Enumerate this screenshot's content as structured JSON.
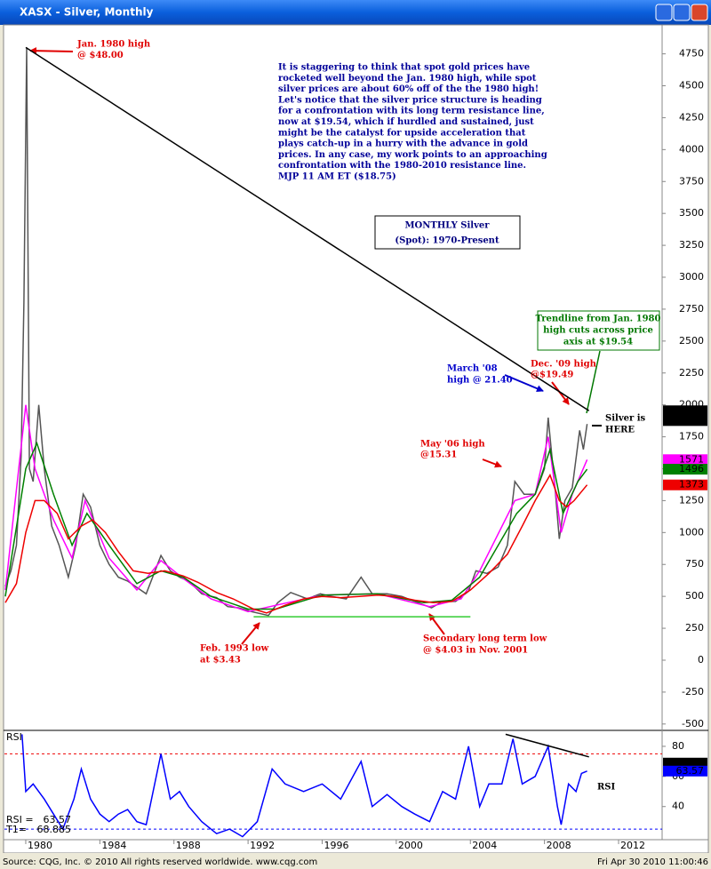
{
  "window_title": "XASX - Silver, Monthly",
  "chart_data": {
    "type": "line",
    "ylim": [
      -550,
      4970
    ],
    "yticks": [
      4750,
      4500,
      4250,
      4000,
      3750,
      3500,
      3250,
      3000,
      2750,
      2500,
      2250,
      2000,
      1750,
      1500,
      1250,
      1000,
      750,
      500,
      250,
      0,
      -250,
      -500
    ],
    "xlim": [
      1978.85,
      2014.35
    ],
    "xticks": [
      1980,
      1984,
      1988,
      1992,
      1996,
      2000,
      2004,
      2008,
      2012
    ],
    "series": [
      {
        "color": "#555555",
        "x": [
          1978.9,
          1979.2,
          1979.5,
          1979.75,
          1979.9,
          1980.05,
          1980.2,
          1980.4,
          1980.7,
          1981.0,
          1981.4,
          1981.8,
          1982.3,
          1982.7,
          1983.1,
          1983.5,
          1984.0,
          1984.5,
          1985.0,
          1985.5,
          1986.0,
          1986.5,
          1987.3,
          1987.8,
          1988.3,
          1988.8,
          1989.5,
          1990.3,
          1990.9,
          1991.5,
          1992.2,
          1993.1,
          1993.6,
          1994.3,
          1995.2,
          1995.9,
          1996.5,
          1997.3,
          1998.1,
          1998.7,
          1999.5,
          2000.3,
          2001.0,
          2001.9,
          2002.5,
          2003.2,
          2003.9,
          2004.3,
          2004.9,
          2005.5,
          2006.0,
          2006.4,
          2006.9,
          2007.5,
          2008.0,
          2008.2,
          2008.6,
          2008.8,
          2009.1,
          2009.5,
          2009.9,
          2010.1,
          2010.3
        ],
        "values": [
          580,
          700,
          900,
          1600,
          2800,
          4800,
          1500,
          1400,
          2000,
          1500,
          1050,
          900,
          650,
          900,
          1300,
          1200,
          900,
          750,
          650,
          620,
          570,
          520,
          820,
          700,
          650,
          620,
          520,
          490,
          420,
          410,
          380,
          350,
          450,
          530,
          480,
          520,
          500,
          480,
          650,
          520,
          520,
          500,
          460,
          410,
          460,
          460,
          540,
          700,
          680,
          730,
          900,
          1400,
          1300,
          1300,
          1500,
          1900,
          1300,
          950,
          1250,
          1350,
          1800,
          1650,
          1850
        ]
      },
      {
        "color": "#ff00ff",
        "x": [
          1978.9,
          1980.0,
          1980.5,
          1981.5,
          1982.5,
          1983.2,
          1984.5,
          1986.0,
          1987.3,
          1988.5,
          1990.0,
          1992.0,
          1993.5,
          1996.0,
          1999.0,
          2001.8,
          2003.5,
          2004.5,
          2006.4,
          2007.5,
          2008.2,
          2008.9,
          2009.5,
          2010.3
        ],
        "values": [
          550,
          2000,
          1500,
          1100,
          800,
          1250,
          800,
          550,
          780,
          640,
          480,
          380,
          430,
          510,
          520,
          420,
          480,
          700,
          1250,
          1300,
          1750,
          1000,
          1300,
          1571
        ]
      },
      {
        "color": "#008000",
        "x": [
          1978.9,
          1980.0,
          1980.6,
          1981.5,
          1982.5,
          1983.3,
          1984.5,
          1986.0,
          1987.3,
          1988.5,
          1990.0,
          1992.0,
          1993.5,
          1996.0,
          1999.0,
          2001.5,
          2003.0,
          2004.5,
          2006.5,
          2007.5,
          2008.3,
          2009.0,
          2009.8,
          2010.3
        ],
        "values": [
          500,
          1500,
          1700,
          1300,
          900,
          1150,
          900,
          600,
          700,
          650,
          500,
          400,
          400,
          510,
          520,
          450,
          470,
          650,
          1150,
          1300,
          1650,
          1150,
          1400,
          1496
        ]
      },
      {
        "color": "#ee0000",
        "x": [
          1978.9,
          1979.5,
          1980.0,
          1980.5,
          1981.0,
          1981.7,
          1982.3,
          1983.0,
          1983.6,
          1984.3,
          1985.0,
          1985.8,
          1986.6,
          1987.5,
          1988.5,
          1989.3,
          1990.3,
          1991.2,
          1992.3,
          1993.0,
          1994.0,
          1995.0,
          1996.0,
          1997.0,
          1998.0,
          1999.0,
          2000.0,
          2001.0,
          2002.0,
          2003.0,
          2004.0,
          2005.0,
          2006.0,
          2006.8,
          2007.5,
          2008.3,
          2008.8,
          2009.2,
          2009.6,
          2010.3
        ],
        "values": [
          450,
          600,
          1000,
          1250,
          1250,
          1150,
          950,
          1050,
          1100,
          1000,
          850,
          700,
          680,
          700,
          660,
          610,
          530,
          480,
          400,
          370,
          430,
          480,
          500,
          490,
          500,
          510,
          500,
          470,
          450,
          460,
          550,
          680,
          830,
          1050,
          1250,
          1450,
          1250,
          1200,
          1250,
          1373
        ]
      },
      {
        "color": "#33cc33",
        "x": [
          1992.3,
          2004.0
        ],
        "values": [
          340,
          340
        ]
      },
      {
        "color": "#000000",
        "x": [
          1980.0,
          2010.4
        ],
        "values": [
          4800,
          1954
        ]
      }
    ],
    "price_labels": [
      {
        "value": 1954,
        "color": "#000000"
      },
      {
        "value": 1877,
        "color": "#000000"
      },
      {
        "value": 1571,
        "color": "#ff00ff"
      },
      {
        "value": 1496,
        "color": "#008000"
      },
      {
        "value": 1373,
        "color": "#ee0000"
      }
    ],
    "annotations": [
      {
        "color": "#e00000",
        "lines": [
          "Jan. 1980 high",
          "@ $48.00"
        ]
      },
      {
        "color": "#000099",
        "lines": [
          "It is staggering to think that spot gold prices have",
          "rocketed well beyond the Jan. 1980 high, while spot",
          "silver prices are about 60% off of the the 1980 high!",
          "Let's notice that the silver price structure is heading",
          "for a confrontation with its long term resistance line,",
          "now at $19.54, which if hurdled and sustained, just",
          "might be the catalyst for upside acceleration that",
          "plays catch-up in a hurry with the advance in gold",
          "prices. In any case, my work points to an approaching",
          "confrontation with the 1980-2010 resistance line.",
          "MJP  11 AM ET ($18.75)"
        ]
      },
      {
        "color": "#000080",
        "lines": [
          "MONTHLY Silver",
          "(Spot): 1970-Present"
        ]
      },
      {
        "color": "#007700",
        "lines": [
          "Trendline from Jan. 1980",
          "high cuts across price",
          "axis at $19.54"
        ]
      },
      {
        "color": "#0000cc",
        "lines": [
          "March '08",
          "high @ 21.40"
        ]
      },
      {
        "color": "#e00000",
        "lines": [
          "Dec. '09 high",
          "@$19.49"
        ]
      },
      {
        "color": "#000000",
        "lines": [
          "Silver is",
          "HERE"
        ]
      },
      {
        "color": "#e00000",
        "lines": [
          "May '06 high",
          "@15.31"
        ]
      },
      {
        "color": "#e00000",
        "lines": [
          "Feb. 1993 low",
          "at $3.43"
        ]
      },
      {
        "color": "#e00000",
        "lines": [
          "Secondary long term low",
          "@ $4.03 in Nov. 2001"
        ]
      }
    ],
    "rsi": {
      "title": "RSI",
      "ylim": [
        18,
        90
      ],
      "yticks": [
        80,
        60,
        40
      ],
      "levels": [
        {
          "value": 75,
          "color": "#ee0000"
        },
        {
          "value": 25,
          "color": "#0000ff"
        }
      ],
      "series": [
        {
          "color": "#0000ff",
          "x": [
            1979.8,
            1980.0,
            1980.4,
            1981.0,
            1981.5,
            1982.0,
            1982.6,
            1983.0,
            1983.5,
            1984.0,
            1984.5,
            1985.0,
            1985.5,
            1986.0,
            1986.5,
            1987.3,
            1987.8,
            1988.3,
            1988.8,
            1989.5,
            1990.3,
            1991.0,
            1991.7,
            1992.5,
            1993.3,
            1994.0,
            1995.0,
            1996.0,
            1997.0,
            1998.1,
            1998.7,
            1999.5,
            2000.3,
            2001.0,
            2001.8,
            2002.5,
            2003.2,
            2003.9,
            2004.5,
            2005.0,
            2005.7,
            2006.3,
            2006.8,
            2007.5,
            2008.2,
            2008.7,
            2008.9,
            2009.3,
            2009.7,
            2010.0,
            2010.3
          ],
          "values": [
            88,
            50,
            55,
            45,
            35,
            25,
            45,
            65,
            45,
            35,
            30,
            35,
            38,
            30,
            28,
            75,
            45,
            50,
            40,
            30,
            22,
            25,
            20,
            30,
            65,
            55,
            50,
            55,
            45,
            70,
            40,
            48,
            40,
            35,
            30,
            50,
            45,
            80,
            40,
            55,
            55,
            85,
            55,
            60,
            80,
            40,
            28,
            55,
            50,
            62,
            63.57
          ]
        },
        {
          "color": "#000000",
          "x": [
            2005.9,
            2010.4
          ],
          "values": [
            88,
            73
          ]
        }
      ],
      "labels": [
        {
          "value": 68.88,
          "color": "#000000"
        },
        {
          "value": 63.57,
          "color": "#0000ff"
        }
      ],
      "readout": [
        {
          "label": "RSI =",
          "value": 63.57
        },
        {
          "label": "T1=",
          "value": 68.885
        }
      ],
      "annotation": "RSI"
    }
  },
  "footer": {
    "source": "Source: CQG, Inc. © 2010 All rights reserved worldwide. www.cqg.com",
    "timestamp": "Fri Apr 30 2010 11:00:46"
  }
}
